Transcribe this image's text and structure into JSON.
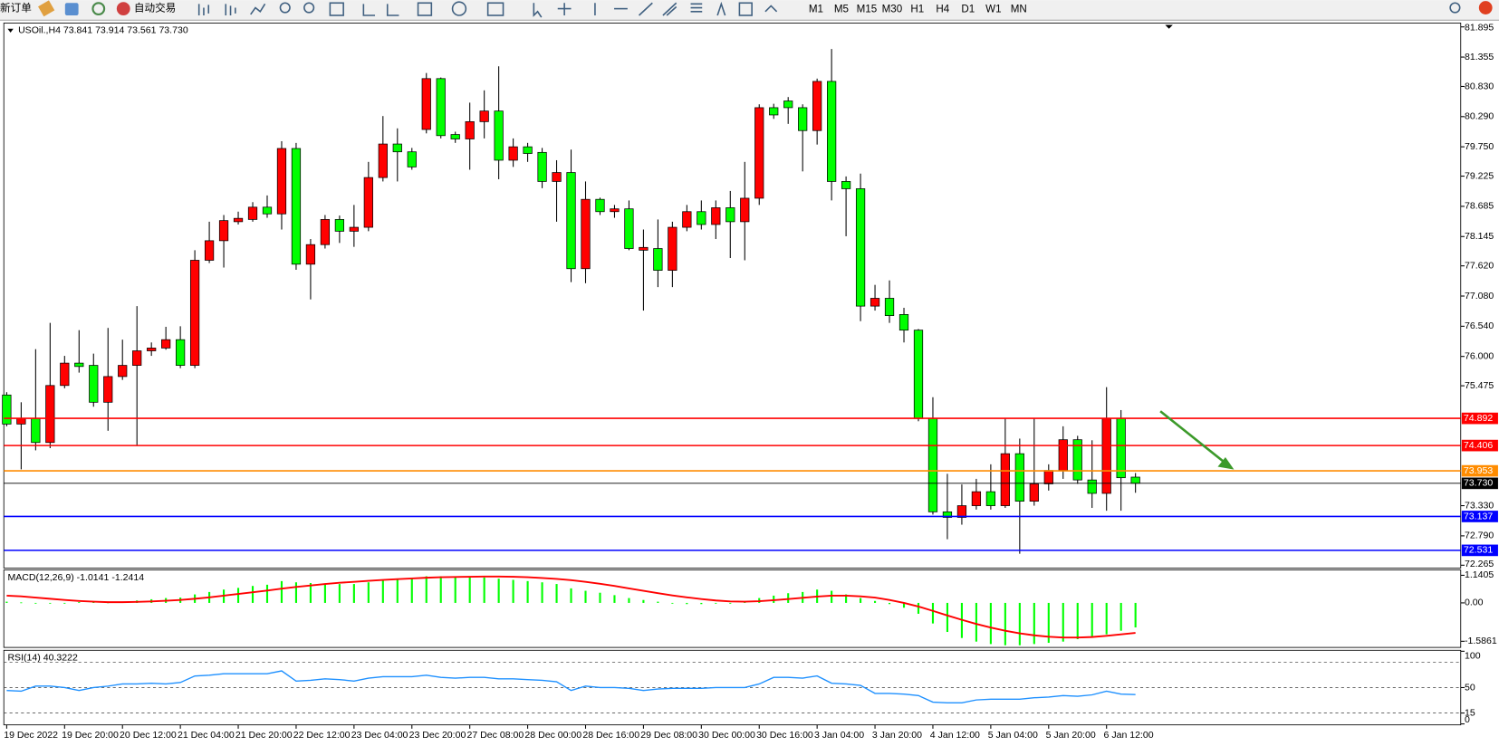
{
  "toolbar": {
    "new_order": "新订单",
    "auto_trading": "自动交易",
    "timeframes": [
      "M1",
      "M5",
      "M15",
      "M30",
      "H1",
      "H4",
      "D1",
      "W1",
      "MN"
    ]
  },
  "chart_data": [
    {
      "type": "candlestick",
      "title": "USOil.,H4 73.841 73.914 73.561 73.730",
      "x": [
        "19 Dec 2022",
        null,
        null,
        null,
        "19 Dec 20:00",
        null,
        null,
        null,
        "20 Dec 12:00",
        null,
        null,
        null,
        "21 Dec 04:00",
        null,
        null,
        null,
        "21 Dec 20:00",
        null,
        null,
        null,
        "22 Dec 12:00",
        null,
        null,
        null,
        "23 Dec 04:00",
        null,
        null,
        null,
        "23 Dec 20:00",
        null,
        null,
        null,
        "27 Dec 08:00",
        null,
        null,
        null,
        "28 Dec 00:00",
        null,
        null,
        null,
        "28 Dec 16:00",
        null,
        null,
        null,
        "29 Dec 08:00",
        null,
        null,
        null,
        "30 Dec 00:00",
        null,
        null,
        null,
        "30 Dec 16:00",
        null,
        null,
        null,
        "3 Jan 04:00",
        null,
        null,
        null,
        "3 Jan 20:00",
        null,
        null,
        null,
        "4 Jan 12:00",
        null,
        null,
        null,
        "5 Jan 04:00",
        null,
        null,
        null,
        "5 Jan 20:00",
        null,
        null,
        null,
        "6 Jan 12:00",
        null,
        null
      ],
      "open": [
        75.31,
        74.79,
        74.89,
        74.46,
        75.48,
        75.88,
        75.84,
        75.18,
        75.64,
        75.84,
        76.1,
        76.15,
        76.3,
        75.84,
        77.72,
        78.07,
        78.41,
        78.45,
        78.67,
        78.55,
        79.72,
        77.65,
        78.0,
        78.45,
        78.24,
        78.31,
        79.2,
        79.8,
        79.66,
        80.06,
        80.97,
        79.97,
        79.89,
        80.2,
        80.39,
        79.51,
        79.75,
        79.65,
        79.13,
        79.29,
        77.57,
        78.81,
        78.59,
        78.64,
        77.9,
        77.93,
        77.54,
        78.31,
        78.59,
        78.36,
        78.66,
        78.41,
        78.83,
        80.45,
        80.57,
        80.45,
        80.04,
        80.92,
        79.13,
        79.0,
        76.9,
        77.04,
        76.75,
        76.47,
        74.89,
        73.22,
        73.12,
        73.33,
        73.58,
        73.33,
        74.26,
        73.41,
        73.72,
        73.96,
        74.51,
        73.79,
        73.55,
        74.89,
        73.841
      ],
      "high": [
        75.36,
        75.18,
        76.13,
        76.6,
        76.01,
        76.47,
        76.05,
        76.51,
        76.3,
        76.9,
        76.25,
        76.53,
        76.54,
        77.9,
        78.41,
        78.53,
        78.59,
        78.76,
        78.88,
        79.85,
        79.82,
        78.1,
        78.53,
        78.52,
        78.71,
        79.48,
        80.3,
        80.08,
        79.73,
        81.07,
        80.99,
        80.02,
        80.54,
        80.76,
        81.19,
        79.9,
        79.82,
        79.73,
        79.51,
        79.7,
        79.13,
        78.84,
        78.71,
        78.79,
        78.27,
        78.45,
        78.41,
        78.71,
        78.79,
        78.79,
        78.96,
        79.48,
        80.51,
        80.52,
        80.64,
        80.51,
        80.97,
        81.5,
        79.22,
        79.27,
        77.28,
        77.36,
        76.87,
        76.49,
        75.27,
        73.9,
        73.71,
        73.81,
        74.07,
        74.89,
        74.53,
        74.89,
        74.07,
        74.75,
        74.58,
        74.5,
        75.45,
        75.04,
        73.914
      ],
      "low": [
        74.75,
        73.98,
        74.32,
        74.36,
        75.43,
        75.71,
        75.1,
        74.67,
        75.58,
        74.41,
        76.01,
        76.12,
        75.79,
        75.79,
        77.67,
        77.59,
        78.36,
        78.41,
        78.48,
        78.27,
        77.55,
        77.02,
        77.93,
        78.03,
        77.96,
        78.24,
        79.13,
        79.13,
        79.34,
        79.99,
        79.9,
        79.82,
        79.34,
        79.9,
        79.17,
        79.39,
        79.48,
        79.01,
        78.41,
        77.33,
        77.31,
        78.53,
        78.48,
        77.9,
        76.82,
        77.24,
        77.24,
        78.24,
        78.27,
        78.1,
        77.76,
        77.72,
        78.71,
        80.25,
        80.16,
        79.31,
        79.79,
        78.79,
        78.15,
        76.63,
        76.82,
        76.6,
        76.25,
        74.84,
        73.17,
        72.73,
        72.99,
        73.26,
        73.26,
        73.29,
        72.47,
        73.33,
        73.6,
        73.81,
        73.72,
        73.29,
        73.24,
        73.24,
        73.561
      ],
      "close": [
        74.79,
        74.89,
        74.46,
        75.48,
        75.88,
        75.82,
        75.18,
        75.64,
        75.84,
        76.1,
        76.15,
        76.3,
        75.84,
        77.72,
        78.07,
        78.43,
        78.47,
        78.67,
        78.55,
        79.72,
        77.65,
        78.0,
        78.45,
        78.24,
        78.31,
        79.2,
        79.8,
        79.66,
        79.39,
        80.97,
        79.95,
        79.89,
        80.2,
        80.39,
        79.51,
        79.75,
        79.63,
        79.13,
        79.29,
        77.57,
        78.81,
        78.59,
        78.64,
        77.93,
        77.95,
        77.54,
        78.31,
        78.59,
        78.36,
        78.66,
        78.41,
        78.83,
        80.45,
        80.32,
        80.45,
        80.04,
        80.92,
        79.13,
        79.0,
        76.9,
        77.04,
        76.73,
        76.47,
        74.89,
        73.22,
        73.12,
        73.33,
        73.58,
        73.33,
        74.26,
        73.41,
        73.72,
        73.96,
        74.51,
        73.79,
        73.55,
        74.89,
        73.83,
        73.73
      ],
      "up_color": "#ff0000",
      "down_color": "#00ff00",
      "ylim": [
        72.214,
        81.964
      ],
      "yticks": [
        81.895,
        81.355,
        {
          "value": 80.83,
          "label": "80.830"
        },
        {
          "value": 80.29,
          "label": "80.290"
        },
        {
          "value": 79.75,
          "label": "79.750"
        },
        79.225,
        78.685,
        78.145,
        {
          "value": 77.62,
          "label": "77.620"
        },
        {
          "value": 77.08,
          "label": "77.080"
        },
        {
          "value": 76.54,
          "label": "76.540"
        },
        {
          "value": 76,
          "label": "76.000"
        },
        75.475,
        {
          "value": 73.33,
          "label": "73.330"
        },
        {
          "value": 72.79,
          "label": "72.790"
        },
        72.265
      ],
      "hlines": [
        {
          "value": 74.892,
          "color": "#ff0000"
        },
        {
          "value": 74.406,
          "color": "#ff0000"
        },
        {
          "value": 73.953,
          "color": "#ff8c00"
        },
        {
          "value": 73.137,
          "color": "#0000ff"
        },
        {
          "value": 72.531,
          "color": "#0000ff"
        }
      ],
      "bid": {
        "value": 73.73,
        "label": "73.730"
      }
    },
    {
      "type": "macd",
      "title": "MACD(12,26,9) -1.0141 -1.2414",
      "values": [
        0.05,
        0.02,
        -0.03,
        -0.03,
        0.0,
        0.03,
        0.03,
        0.02,
        0.05,
        0.1,
        0.15,
        0.2,
        0.22,
        0.35,
        0.45,
        0.55,
        0.62,
        0.7,
        0.75,
        0.9,
        0.85,
        0.82,
        0.8,
        0.78,
        0.78,
        0.85,
        0.95,
        1.0,
        1.0,
        1.1,
        1.1,
        1.05,
        1.05,
        1.05,
        1.0,
        0.95,
        0.9,
        0.85,
        0.78,
        0.6,
        0.5,
        0.42,
        0.32,
        0.2,
        0.12,
        0.05,
        -0.02,
        -0.05,
        -0.05,
        -0.03,
        0.0,
        0.05,
        0.2,
        0.3,
        0.4,
        0.45,
        0.55,
        0.5,
        0.35,
        0.2,
        0.08,
        -0.05,
        -0.2,
        -0.45,
        -0.85,
        -1.2,
        -1.45,
        -1.6,
        -1.7,
        -1.75,
        -1.75,
        -1.7,
        -1.65,
        -1.6,
        -1.5,
        -1.4,
        -1.3,
        -1.15,
        -1.0141
      ],
      "signal": [
        0.3,
        0.27,
        0.22,
        0.17,
        0.12,
        0.08,
        0.05,
        0.03,
        0.03,
        0.04,
        0.06,
        0.09,
        0.12,
        0.17,
        0.23,
        0.3,
        0.37,
        0.44,
        0.51,
        0.59,
        0.66,
        0.72,
        0.78,
        0.83,
        0.87,
        0.91,
        0.95,
        0.98,
        1.01,
        1.04,
        1.06,
        1.07,
        1.08,
        1.09,
        1.09,
        1.08,
        1.06,
        1.03,
        0.99,
        0.94,
        0.87,
        0.79,
        0.7,
        0.6,
        0.5,
        0.4,
        0.31,
        0.23,
        0.16,
        0.1,
        0.06,
        0.05,
        0.07,
        0.11,
        0.16,
        0.21,
        0.26,
        0.3,
        0.3,
        0.27,
        0.22,
        0.12,
        0.0,
        -0.15,
        -0.33,
        -0.52,
        -0.7,
        -0.87,
        -1.02,
        -1.15,
        -1.26,
        -1.34,
        -1.4,
        -1.43,
        -1.43,
        -1.41,
        -1.36,
        -1.3,
        -1.2414
      ],
      "color": "#00ff00",
      "signal_color": "#ff0000",
      "ylim": [
        -1.84,
        1.36
      ],
      "yticks": [
        1.1405,
        {
          "value": 0,
          "label": "0.00"
        },
        -1.5861
      ]
    },
    {
      "type": "rsi",
      "title": "RSI(14) 40.3222",
      "values": [
        46,
        45,
        52,
        52,
        50,
        46,
        50,
        52,
        55,
        55,
        56,
        55,
        57,
        66,
        67,
        69,
        69,
        69,
        69,
        73,
        59,
        60,
        62,
        61,
        59,
        63,
        65,
        65,
        65,
        67,
        64,
        63,
        64,
        64,
        62,
        62,
        61,
        60,
        58,
        46,
        52,
        50,
        50,
        49,
        46,
        48,
        49,
        49,
        49,
        50,
        50,
        50,
        55,
        64,
        64,
        63,
        66,
        56,
        55,
        53,
        42,
        42,
        41,
        39,
        30,
        29,
        29,
        33,
        34,
        34,
        34,
        36,
        37,
        39,
        38,
        40,
        45,
        41,
        40.3222
      ],
      "color": "#1e90ff",
      "ylim": [
        0,
        100
      ],
      "yticks": [
        100,
        50,
        15,
        0
      ],
      "levels": [
        85,
        50,
        15
      ]
    }
  ]
}
